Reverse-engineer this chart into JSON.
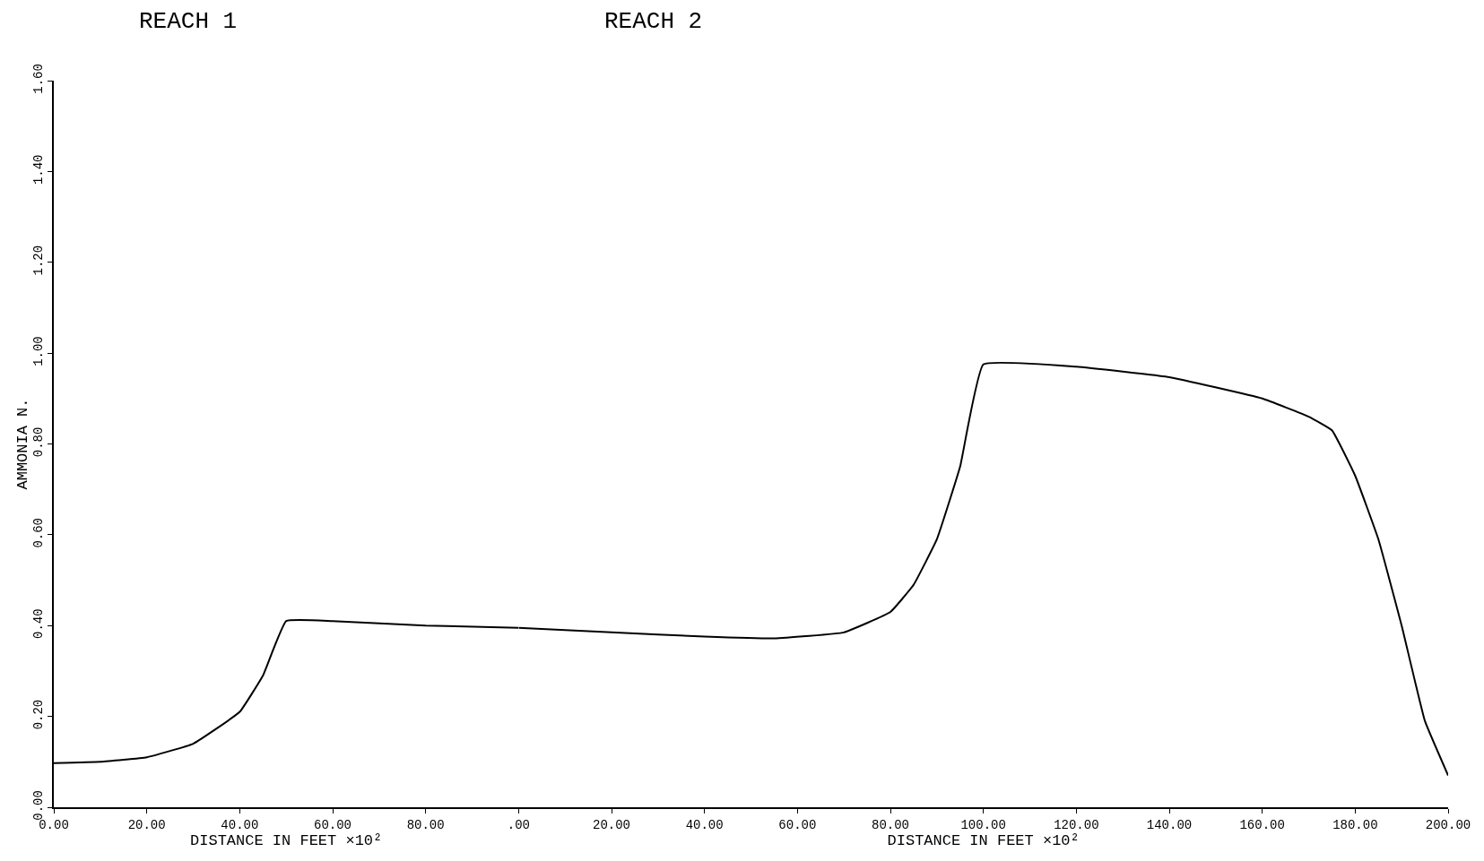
{
  "chart_data": [
    {
      "type": "line",
      "title": "REACH 1",
      "xlabel": "DISTANCE IN FEET ×10²",
      "ylabel": "AMMONIA N.",
      "x": [
        0,
        10,
        20,
        30,
        40,
        45,
        50,
        60,
        80,
        100
      ],
      "series": [
        {
          "color": "#000000",
          "values": [
            0.097,
            0.1,
            0.11,
            0.14,
            0.21,
            0.29,
            0.41,
            0.41,
            0.4,
            0.395
          ]
        }
      ],
      "xlim": [
        0,
        100
      ],
      "xticks": [
        {
          "value": 0,
          "label": "0.00"
        },
        {
          "value": 20,
          "label": "20.00"
        },
        {
          "value": 40,
          "label": "40.00"
        },
        {
          "value": 60,
          "label": "60.00"
        },
        {
          "value": 80,
          "label": "80.00"
        },
        {
          "value": 100,
          "label": null
        }
      ],
      "ylim": [
        0,
        1.6
      ],
      "yticks": [
        {
          "value": 0,
          "label": "0.00"
        },
        {
          "value": 0.2,
          "label": "0.20"
        },
        {
          "value": 0.4,
          "label": "0.40"
        },
        {
          "value": 0.6,
          "label": "0.60"
        },
        {
          "value": 0.8,
          "label": "0.80"
        },
        {
          "value": 1.0,
          "label": "1.00"
        },
        {
          "value": 1.2,
          "label": "1.20"
        },
        {
          "value": 1.4,
          "label": "1.40"
        },
        {
          "value": 1.6,
          "label": "1.60"
        }
      ]
    },
    {
      "type": "line",
      "title": "REACH 2",
      "xlabel": "DISTANCE IN FEET ×10²",
      "x": [
        0,
        20,
        40,
        55,
        70,
        80,
        85,
        90,
        95,
        100,
        120,
        140,
        160,
        170,
        175,
        180,
        185,
        190,
        195,
        200
      ],
      "series": [
        {
          "color": "#000000",
          "values": [
            0.395,
            0.385,
            0.376,
            0.372,
            0.385,
            0.43,
            0.49,
            0.59,
            0.75,
            0.975,
            0.97,
            0.947,
            0.9,
            0.86,
            0.83,
            0.73,
            0.59,
            0.4,
            0.19,
            0.07
          ]
        }
      ],
      "xlim": [
        0,
        200
      ],
      "xticks": [
        {
          "value": 0,
          "label": ".00"
        },
        {
          "value": 20,
          "label": "20.00"
        },
        {
          "value": 40,
          "label": "40.00"
        },
        {
          "value": 60,
          "label": "60.00"
        },
        {
          "value": 80,
          "label": "80.00"
        },
        {
          "value": 100,
          "label": "100.00"
        },
        {
          "value": 120,
          "label": "120.00"
        },
        {
          "value": 140,
          "label": "140.00"
        },
        {
          "value": 160,
          "label": "160.00"
        },
        {
          "value": 180,
          "label": "180.00"
        },
        {
          "value": 200,
          "label": "200.00"
        }
      ],
      "ylim": [
        0,
        1.6
      ],
      "tick_labels": "x"
    }
  ]
}
